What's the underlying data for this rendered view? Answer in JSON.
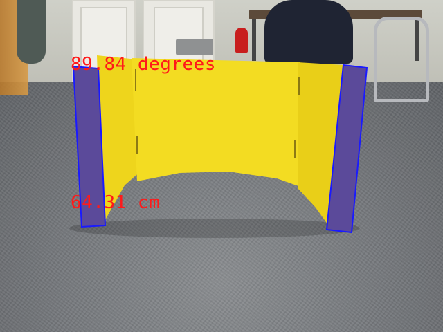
{
  "readouts": {
    "angle": "89.84 degrees",
    "distance": "64.31 cm"
  },
  "colors": {
    "readout_text": "#ff1a1a",
    "detection_box": "#1a1aff",
    "board_yellow": "#f2dc1e",
    "marker_purple": "#5b4a9a"
  }
}
